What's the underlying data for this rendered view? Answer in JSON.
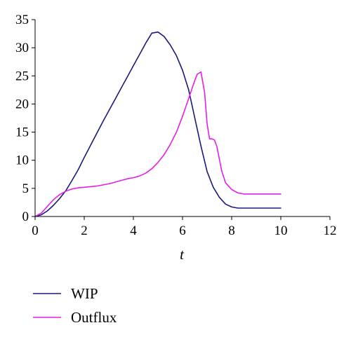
{
  "chart_data": {
    "type": "line",
    "xlabel": "t",
    "ylabel": "",
    "xlim": [
      0,
      12
    ],
    "ylim": [
      0,
      35
    ],
    "xticks": [
      0,
      2,
      4,
      6,
      8,
      10,
      12
    ],
    "yticks": [
      0,
      5,
      10,
      15,
      20,
      25,
      30,
      35
    ],
    "grid": false,
    "legend_position": "bottom-left",
    "series": [
      {
        "name": "WIP",
        "color": "#1a1a7a",
        "x": [
          0,
          0.25,
          0.5,
          0.75,
          1.0,
          1.25,
          1.5,
          1.75,
          2.0,
          2.25,
          2.5,
          2.75,
          3.0,
          3.25,
          3.5,
          3.75,
          4.0,
          4.25,
          4.5,
          4.75,
          5.0,
          5.25,
          5.5,
          5.75,
          6.0,
          6.25,
          6.5,
          6.75,
          7.0,
          7.25,
          7.5,
          7.75,
          8.0,
          8.25,
          8.5,
          9.0,
          9.5,
          10.0
        ],
        "y": [
          0,
          0.3,
          1.0,
          2.0,
          3.2,
          4.6,
          6.4,
          8.3,
          10.5,
          12.6,
          14.7,
          16.8,
          18.8,
          20.8,
          22.8,
          24.8,
          26.8,
          28.8,
          30.8,
          32.6,
          32.8,
          32.0,
          30.5,
          28.6,
          26.0,
          22.5,
          17.5,
          12.5,
          8.0,
          5.2,
          3.4,
          2.2,
          1.7,
          1.5,
          1.5,
          1.5,
          1.5,
          1.5
        ]
      },
      {
        "name": "Outflux",
        "color": "#e61ee6",
        "x": [
          0,
          0.25,
          0.5,
          0.75,
          1.0,
          1.25,
          1.5,
          1.75,
          2.0,
          2.25,
          2.5,
          2.75,
          3.0,
          3.25,
          3.5,
          3.75,
          4.0,
          4.25,
          4.5,
          4.75,
          5.0,
          5.25,
          5.5,
          5.75,
          6.0,
          6.25,
          6.5,
          6.6,
          6.75,
          6.9,
          7.0,
          7.1,
          7.2,
          7.3,
          7.4,
          7.5,
          7.6,
          7.75,
          8.0,
          8.25,
          8.5,
          9.0,
          9.5,
          10.0
        ],
        "y": [
          0,
          0.6,
          1.8,
          3.0,
          3.9,
          4.5,
          4.9,
          5.1,
          5.2,
          5.3,
          5.4,
          5.6,
          5.8,
          6.1,
          6.4,
          6.7,
          6.9,
          7.2,
          7.7,
          8.5,
          9.6,
          11.0,
          12.8,
          15.0,
          17.8,
          21.0,
          24.2,
          25.3,
          25.7,
          22.0,
          16.5,
          13.8,
          13.8,
          13.6,
          12.4,
          10.2,
          8.0,
          6.0,
          4.8,
          4.2,
          4.0,
          4.0,
          4.0,
          4.0
        ]
      }
    ]
  }
}
